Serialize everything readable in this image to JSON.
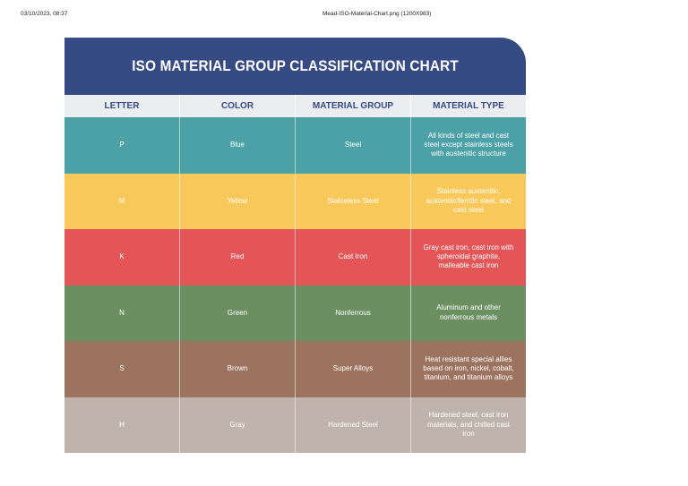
{
  "print_header": {
    "date": "03/10/2023, 08:37",
    "filename": "Mead-ISO-Material-Chart.png (1200X983)"
  },
  "chart": {
    "title": "ISO MATERIAL GROUP CLASSIFICATION CHART",
    "title_bar_color": "#364a84",
    "columns": [
      "LETTER",
      "COLOR",
      "MATERIAL GROUP",
      "MATERIAL TYPE"
    ],
    "rows": [
      {
        "letter": "P",
        "color": "Blue",
        "group": "Steel",
        "type": "All kinds of steel and cast steel except stainless steels with austenitic structure",
        "bg": "#4ca1a6"
      },
      {
        "letter": "M",
        "color": "Yellow",
        "group": "Staineless Steel",
        "type": "Stainless austenitic, austenitic/ferritic steel, and cast steel",
        "bg": "#f9c85a"
      },
      {
        "letter": "K",
        "color": "Red",
        "group": "Cast Iron",
        "type": "Gray cast iron, cast iron with spheroidal graphite, malleable cast iron",
        "bg": "#e45558"
      },
      {
        "letter": "N",
        "color": "Green",
        "group": "Nonferrous",
        "type": "Aluminum and other nonferrous metals",
        "bg": "#6c8f62"
      },
      {
        "letter": "S",
        "color": "Brown",
        "group": "Super Alloys",
        "type": "Heat resistant special allies based on iron, nickel, cobalt, titanium, and titanium alloys",
        "bg": "#9c735f"
      },
      {
        "letter": "H",
        "color": "Gray",
        "group": "Hardened Steel",
        "type": "Hardened steel, cast iron materials, and chilled cast iron",
        "bg": "#c0b3ab"
      }
    ]
  }
}
